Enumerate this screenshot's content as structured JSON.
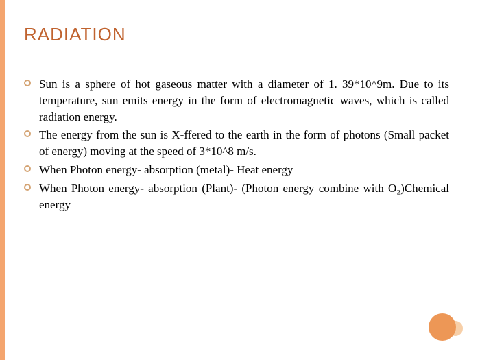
{
  "slide": {
    "title": "RADIATION",
    "title_color": "#c0632f",
    "title_fontsize": 26,
    "body_fontsize": 17,
    "body_color": "#000000",
    "left_border_color": "#f4a56f",
    "bullet_border_color": "#d4a373",
    "circle_fill": "#ed9756",
    "circle_small_fill": "#f7cfa8",
    "background": "#ffffff",
    "bullets": [
      "Sun is a sphere of hot gaseous matter with a diameter of 1. 39*10^9m. Due to its temperature, sun emits energy in the form of electromagnetic waves, which is called radiation energy.",
      "The energy from the sun is X-ffered to the earth in the form of photons (Small packet of energy) moving at the speed of 3*10^8 m/s.",
      "When Photon energy- absorption (metal)- Heat energy",
      "When Photon energy- absorption (Plant)- (Photon energy combine with O₂)Chemical energy"
    ]
  }
}
